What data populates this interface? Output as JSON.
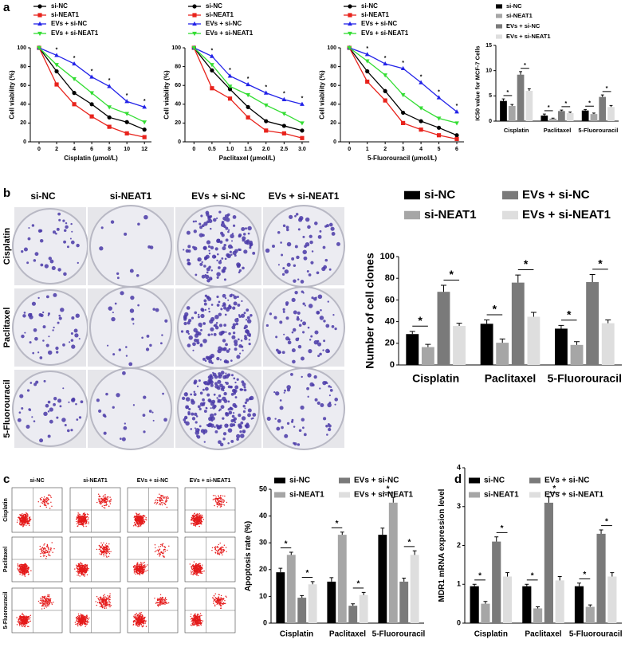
{
  "panel_labels": [
    "a",
    "b",
    "c",
    "d"
  ],
  "colony_images": {
    "columns": [
      "si-NC",
      "si-NEAT1",
      "EVs + si-NC",
      "EVs + si-NEAT1"
    ],
    "rows": [
      "Cisplatin",
      "Paclitaxel",
      "5-Fluorouracil"
    ]
  },
  "flow_images": {
    "columns": [
      "si-NC",
      "si-NEAT1",
      "EVs + si-NC",
      "EVs + si-NEAT1"
    ],
    "rows": [
      "Cisplatin",
      "Paclitaxel",
      "5-Fluorouracil"
    ]
  },
  "chart_data": [
    {
      "type": "line",
      "x_label": "Cisplatin (μmol/L)",
      "y_label": "Cell viability (%)",
      "legend": "top-left",
      "significance": "*",
      "x": [
        0,
        2,
        4,
        6,
        8,
        10,
        12
      ],
      "xlim": [
        -1,
        12.8
      ],
      "xticks": [
        0,
        2,
        4,
        6,
        8,
        10,
        12
      ],
      "ylim": [
        0,
        100
      ],
      "yticks": [
        0,
        20,
        40,
        60,
        80,
        100
      ],
      "series": [
        {
          "name": "si-NC",
          "color": "#000000",
          "marker": "circle",
          "values": [
            100,
            75,
            52,
            40,
            26,
            21,
            13
          ]
        },
        {
          "name": "si-NEAT1",
          "color": "#e8231c",
          "marker": "square",
          "values": [
            100,
            61,
            40,
            27,
            16,
            9,
            5
          ]
        },
        {
          "name": "EVs + si-NC",
          "color": "#2323e8",
          "marker": "triangle-up",
          "values": [
            100,
            92,
            83,
            69,
            59,
            43,
            37
          ]
        },
        {
          "name": "EVs + si-NEAT1",
          "color": "#33dd33",
          "marker": "triangle-down",
          "values": [
            100,
            82,
            67,
            52,
            37,
            30,
            21
          ]
        }
      ]
    },
    {
      "type": "line",
      "x_label": "Paclitaxel (μmol/L)",
      "y_label": "Cell viability (%)",
      "legend": "top-left",
      "significance": "*",
      "x": [
        0,
        0.5,
        1,
        1.5,
        2,
        2.5,
        3
      ],
      "xlim": [
        -0.25,
        3.2
      ],
      "xticks": [
        0,
        0.5,
        {
          "value": 1,
          "label": "1.0"
        },
        1.5,
        {
          "value": 2,
          "label": "2.0"
        },
        2.5,
        {
          "value": 3,
          "label": "3.0"
        }
      ],
      "ylim": [
        0,
        100
      ],
      "yticks": [
        0,
        20,
        40,
        60,
        80,
        100
      ],
      "series": [
        {
          "name": "si-NC",
          "color": "#000000",
          "marker": "circle",
          "values": [
            100,
            76,
            56,
            37,
            22,
            17,
            12
          ]
        },
        {
          "name": "si-NEAT1",
          "color": "#e8231c",
          "marker": "square",
          "values": [
            100,
            57,
            46,
            26,
            12,
            9,
            4
          ]
        },
        {
          "name": "EVs + si-NC",
          "color": "#2323e8",
          "marker": "triangle-up",
          "values": [
            100,
            91,
            70,
            61,
            52,
            45,
            40
          ]
        },
        {
          "name": "EVs + si-NEAT1",
          "color": "#33dd33",
          "marker": "triangle-down",
          "values": [
            100,
            82,
            59,
            50,
            39,
            30,
            20
          ]
        }
      ]
    },
    {
      "type": "line",
      "x_label": "5-Fluorouracil (μmol/L)",
      "y_label": "Cell viability (%)",
      "legend": "top-left",
      "significance": "*",
      "x": [
        0,
        1,
        2,
        3,
        4,
        5,
        6
      ],
      "xlim": [
        -0.5,
        6.4
      ],
      "xticks": [
        0,
        1,
        2,
        3,
        4,
        5,
        6
      ],
      "ylim": [
        0,
        100
      ],
      "yticks": [
        0,
        20,
        40,
        60,
        80,
        100
      ],
      "series": [
        {
          "name": "si-NC",
          "color": "#000000",
          "marker": "circle",
          "values": [
            100,
            75,
            54,
            31,
            22,
            15,
            7
          ]
        },
        {
          "name": "si-NEAT1",
          "color": "#e8231c",
          "marker": "square",
          "values": [
            100,
            64,
            44,
            20,
            13,
            7,
            3
          ]
        },
        {
          "name": "EVs + si-NC",
          "color": "#2323e8",
          "marker": "triangle-up",
          "values": [
            100,
            93,
            83,
            78,
            63,
            47,
            32
          ]
        },
        {
          "name": "EVs + si-NEAT1",
          "color": "#33dd33",
          "marker": "triangle-down",
          "values": [
            100,
            86,
            71,
            50,
            36,
            25,
            20
          ]
        }
      ]
    },
    {
      "type": "bar",
      "y_label": "IC50 value for MCF-7 Cells",
      "legend": "top",
      "significance": "*",
      "categories": [
        "Cisplatin",
        "Paclitaxel",
        "5-Fluorouracil"
      ],
      "ylim": [
        0,
        15
      ],
      "yticks": [
        0,
        5,
        10,
        15
      ],
      "series": [
        {
          "name": "si-NC",
          "color": "#000000",
          "values": [
            4.0,
            1.1,
            2.1
          ],
          "errors": [
            0.4,
            0.3,
            0.2
          ]
        },
        {
          "name": "si-NEAT1",
          "color": "#a6a6a6",
          "values": [
            3.0,
            0.5,
            1.4
          ],
          "errors": [
            0.3,
            0.1,
            0.2
          ]
        },
        {
          "name": "EVs + si-NC",
          "color": "#7a7a7a",
          "values": [
            9.2,
            2.0,
            4.8
          ],
          "errors": [
            0.6,
            0.2,
            0.4
          ]
        },
        {
          "name": "EVs + si-NEAT1",
          "color": "#dedede",
          "values": [
            6.0,
            1.6,
            2.8
          ],
          "errors": [
            0.4,
            0.2,
            0.3
          ]
        }
      ]
    },
    {
      "type": "bar",
      "y_label": "Number of cell clones",
      "legend": "top",
      "significance": "*",
      "categories": [
        "Cisplatin",
        "Paclitaxel",
        "5-Fluorouracil"
      ],
      "ylim": [
        0,
        100
      ],
      "yticks": [
        0,
        20,
        40,
        60,
        80,
        100
      ],
      "series": [
        {
          "name": "si-NC",
          "color": "#000000",
          "values": [
            28.5,
            38,
            33.5
          ],
          "errors": [
            2.5,
            3.5,
            3
          ]
        },
        {
          "name": "si-NEAT1",
          "color": "#a6a6a6",
          "values": [
            16.5,
            20.5,
            18.5
          ],
          "errors": [
            2.5,
            3.5,
            3
          ]
        },
        {
          "name": "EVs + si-NC",
          "color": "#7a7a7a",
          "values": [
            67.5,
            76,
            76.5
          ],
          "errors": [
            6,
            7,
            7
          ]
        },
        {
          "name": "EVs + si-NEAT1",
          "color": "#dedede",
          "values": [
            36,
            44.5,
            38.5
          ],
          "errors": [
            2.5,
            4,
            3
          ]
        }
      ]
    },
    {
      "type": "bar",
      "y_label": "Apoptosis rate (%)",
      "legend": "top",
      "significance": "*",
      "categories": [
        "Cisplatin",
        "Paclitaxel",
        "5-Fluorouracil"
      ],
      "ylim": [
        0,
        50
      ],
      "yticks": [
        0,
        10,
        20,
        30,
        40,
        50
      ],
      "series": [
        {
          "name": "si-NC",
          "color": "#000000",
          "values": [
            19,
            15.5,
            33
          ],
          "errors": [
            1.5,
            1.5,
            2.5
          ]
        },
        {
          "name": "si-NEAT1",
          "color": "#a6a6a6",
          "values": [
            25.5,
            33,
            45
          ],
          "errors": [
            1,
            1,
            2
          ]
        },
        {
          "name": "EVs + si-NC",
          "color": "#7a7a7a",
          "values": [
            9.5,
            6.5,
            15.5
          ],
          "errors": [
            0.8,
            0.7,
            1.3
          ]
        },
        {
          "name": "EVs + si-NEAT1",
          "color": "#dedede",
          "values": [
            14.5,
            10.5,
            25.5
          ],
          "errors": [
            1,
            1,
            1.5
          ]
        }
      ]
    },
    {
      "type": "bar",
      "y_label": "MDR1 mRNA expression level",
      "legend": "top",
      "significance": "*",
      "categories": [
        "Cisplatin",
        "Paclitaxel",
        "5-Fluorouracil"
      ],
      "ylim": [
        0,
        4
      ],
      "yticks": [
        0,
        1,
        2,
        3,
        4
      ],
      "series": [
        {
          "name": "si-NC",
          "color": "#000000",
          "values": [
            0.95,
            0.95,
            0.95
          ],
          "errors": [
            0.05,
            0.05,
            0.08
          ]
        },
        {
          "name": "si-NEAT1",
          "color": "#a6a6a6",
          "values": [
            0.5,
            0.38,
            0.42
          ],
          "errors": [
            0.06,
            0.04,
            0.05
          ]
        },
        {
          "name": "EVs + si-NC",
          "color": "#7a7a7a",
          "values": [
            2.1,
            3.1,
            2.3
          ],
          "errors": [
            0.12,
            0.15,
            0.1
          ]
        },
        {
          "name": "EVs + si-NEAT1",
          "color": "#dedede",
          "values": [
            1.2,
            1.1,
            1.2
          ],
          "errors": [
            0.1,
            0.1,
            0.1
          ]
        }
      ]
    }
  ]
}
